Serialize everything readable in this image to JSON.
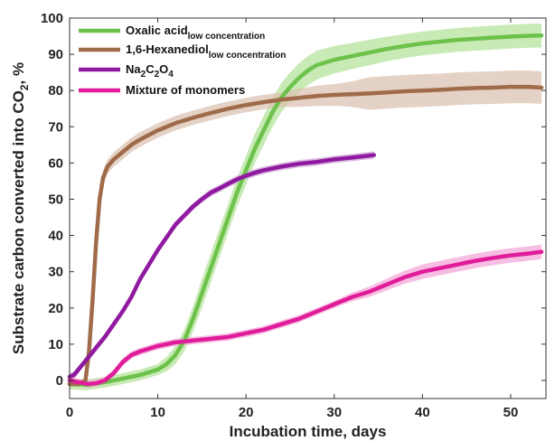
{
  "chart_data": {
    "type": "line",
    "xlabel": "Incubation time, days",
    "ylabel": {
      "main": "Substrate carbon converted into CO",
      "sub": "2",
      "suffix": ", %"
    },
    "xlim": [
      0,
      54
    ],
    "ylim": [
      -5,
      100
    ],
    "x_ticks": [
      0,
      10,
      20,
      30,
      40,
      50
    ],
    "y_ticks": [
      0,
      10,
      20,
      30,
      40,
      50,
      60,
      70,
      80,
      90,
      100
    ],
    "grid": false,
    "legend_position": "top-left",
    "series": [
      {
        "name": "Oxalic acid",
        "name_sub": "low concentration",
        "color": "#6cc24a",
        "band_color": "#b6e39c",
        "x": [
          0,
          2,
          4,
          6,
          8,
          10,
          11,
          12,
          13,
          14,
          15,
          16,
          17,
          18,
          19,
          20,
          21,
          22,
          23,
          24,
          25,
          26,
          27,
          28,
          30,
          32,
          34,
          36,
          38,
          40,
          42,
          44,
          46,
          48,
          50,
          52,
          53.5
        ],
        "y": [
          -1,
          -1.2,
          -0.5,
          0.5,
          1.5,
          3,
          4.5,
          7,
          11,
          17,
          24,
          31,
          38,
          45,
          52,
          58,
          64,
          69,
          74,
          78,
          81,
          83.5,
          85.5,
          87,
          88.5,
          89.5,
          90.5,
          91.5,
          92.3,
          93,
          93.5,
          94,
          94.3,
          94.6,
          94.9,
          95.1,
          95.2
        ],
        "band": [
          1.5,
          1.5,
          1.5,
          1.5,
          1.5,
          1.5,
          2,
          2.5,
          3,
          3.5,
          4,
          4,
          4,
          4,
          4,
          4,
          4,
          4,
          4,
          4,
          4,
          4,
          4,
          4,
          3.8,
          3.6,
          3.5,
          3.4,
          3.3,
          3.3,
          3.3,
          3.3,
          3.3,
          3.3,
          3.3,
          3.3,
          3.3
        ]
      },
      {
        "name": "1,6-Hexanediol",
        "name_sub": "low concentration",
        "color": "#a06b4a",
        "band_color": "#dcc3b3",
        "x": [
          0,
          1,
          1.8,
          2.2,
          2.6,
          3,
          3.4,
          3.8,
          4.3,
          5,
          6,
          7,
          8,
          10,
          12,
          14,
          16,
          18,
          20,
          22,
          24,
          26,
          28,
          30,
          32,
          34,
          36,
          38,
          40,
          42,
          44,
          46,
          48,
          50,
          52,
          53.5
        ],
        "y": [
          -1,
          -1,
          0,
          8,
          22,
          38,
          50,
          56,
          59,
          61,
          63,
          65,
          66.5,
          69,
          71,
          72.5,
          73.8,
          75,
          76,
          76.8,
          77.5,
          78,
          78.5,
          78.8,
          79,
          79.2,
          79.5,
          79.8,
          80,
          80.2,
          80.5,
          80.7,
          80.8,
          81,
          81,
          80.8
        ],
        "band": [
          0.5,
          0.5,
          0.5,
          1,
          1.5,
          2,
          2,
          2,
          2,
          2,
          2,
          2,
          2,
          2,
          2,
          2,
          2,
          2,
          2,
          2,
          2,
          2.5,
          2.8,
          3,
          3.5,
          4.5,
          4.5,
          4.5,
          4.5,
          4.5,
          4.5,
          4.5,
          4.5,
          4.5,
          4.5,
          4.5
        ]
      },
      {
        "name": "Na",
        "name_parts": [
          [
            "Na",
            ""
          ],
          [
            "2",
            "sub"
          ],
          [
            "C",
            ""
          ],
          [
            "2",
            "sub"
          ],
          [
            "O",
            ""
          ],
          [
            "4",
            "sub"
          ]
        ],
        "color": "#8f1aa0",
        "band_color": "#d0a2d8",
        "x": [
          0,
          0.5,
          1,
          2,
          3,
          4,
          5,
          6,
          7,
          8,
          9,
          10,
          11,
          12,
          13,
          14,
          15,
          16,
          17,
          18,
          19,
          20,
          21,
          22,
          24,
          26,
          28,
          30,
          32,
          34.5
        ],
        "y": [
          1,
          1.5,
          3,
          6,
          9,
          12,
          15.5,
          19,
          23,
          28,
          32,
          36,
          39.5,
          43,
          45.5,
          48,
          50,
          51.8,
          53,
          54.3,
          55.5,
          56.5,
          57.3,
          58,
          59,
          59.8,
          60.3,
          61,
          61.5,
          62.2
        ],
        "band": [
          1,
          1,
          1,
          1,
          1,
          1,
          1,
          1,
          1,
          1,
          1,
          1,
          1,
          1,
          1,
          1,
          1,
          1,
          1,
          1,
          1,
          1,
          1,
          1,
          1,
          1,
          1,
          1,
          1,
          1
        ]
      },
      {
        "name": "Mixture of monomers",
        "color": "#e01c9a",
        "band_color": "#f3a8d8",
        "x": [
          0,
          1,
          2,
          3,
          4,
          5,
          6,
          7,
          8,
          10,
          12,
          14,
          16,
          18,
          20,
          22,
          24,
          26,
          28,
          30,
          32,
          34,
          36,
          38,
          40,
          42,
          44,
          46,
          48,
          50,
          52,
          53.5
        ],
        "y": [
          0,
          -0.5,
          -1,
          -0.8,
          0,
          2,
          5,
          7,
          8,
          9.5,
          10.5,
          11,
          11.5,
          12,
          13,
          14,
          15.5,
          17,
          19,
          21,
          23,
          24.5,
          26.5,
          28.5,
          30,
          31,
          32,
          33,
          33.8,
          34.5,
          35,
          35.5
        ],
        "band": [
          1,
          1,
          1,
          1,
          1,
          1,
          1,
          1,
          1,
          1,
          1,
          1,
          1,
          1,
          1,
          1,
          1,
          1,
          1,
          1,
          1.2,
          1.4,
          1.6,
          1.8,
          2,
          2,
          2,
          2,
          2,
          2,
          2,
          2
        ]
      }
    ]
  }
}
